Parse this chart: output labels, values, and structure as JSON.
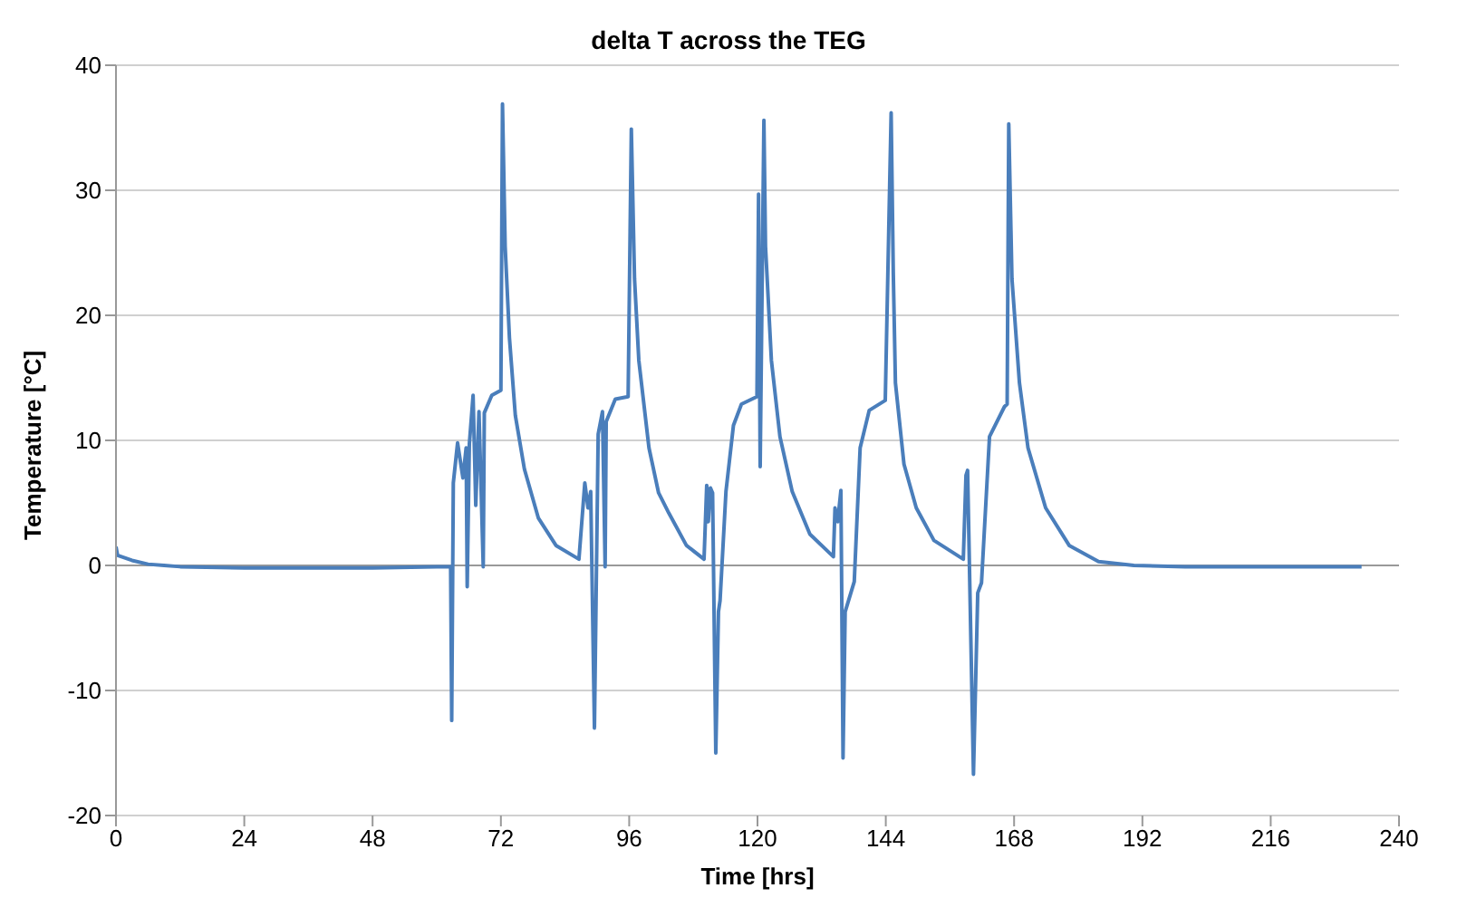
{
  "chart_data": {
    "type": "line",
    "title": "delta T across the TEG",
    "xlabel": "Time [hrs]",
    "ylabel": "Temperature [°C]",
    "x": [
      0,
      0.3,
      3,
      6,
      9,
      12,
      24,
      36,
      48,
      60,
      62.6,
      62.8,
      63.1,
      63.9,
      64.9,
      65.5,
      65.7,
      66.1,
      66.8,
      67.3,
      67.9,
      68.7,
      68.9,
      70.3,
      72.0,
      72.3,
      72.8,
      73.6,
      74.7,
      76.4,
      79,
      82.3,
      86.6,
      87.7,
      88.3,
      88.8,
      89.5,
      90.2,
      91.0,
      91.5,
      91.7,
      93.4,
      95.8,
      96.4,
      97,
      97.8,
      99.7,
      101.5,
      103.4,
      106.7,
      110,
      110.5,
      110.8,
      111.2,
      111.6,
      112.2,
      112.7,
      113,
      114.1,
      115.5,
      117,
      119.9,
      120.2,
      120.5,
      121.2,
      121.5,
      122.6,
      124.2,
      126.5,
      129.8,
      134.2,
      134.5,
      135,
      135.6,
      136.0,
      136.4,
      138.1,
      139.2,
      140.9,
      143.9,
      145.0,
      145.4,
      145.8,
      147.4,
      149.7,
      153,
      158.5,
      159,
      159.3,
      160.4,
      161.2,
      161.9,
      163.4,
      166.2,
      166.7,
      167,
      167.6,
      169,
      170.6,
      173.9,
      178.3,
      183.8,
      190.4,
      200,
      216,
      233
    ],
    "values": [
      1.5,
      0.8,
      0.4,
      0.1,
      0,
      -0.1,
      -0.2,
      -0.2,
      -0.2,
      -0.1,
      -0.1,
      -12.4,
      6.6,
      9.8,
      7.0,
      9.4,
      -1.7,
      9.7,
      13.6,
      4.8,
      12.3,
      -0.1,
      12.2,
      13.6,
      14.0,
      36.9,
      25.5,
      18.2,
      12.0,
      7.7,
      3.8,
      1.6,
      0.5,
      6.6,
      4.6,
      5.9,
      -13.0,
      10.5,
      12.3,
      -0.1,
      11.5,
      13.3,
      13.5,
      34.9,
      22.9,
      16.4,
      9.4,
      5.8,
      4.2,
      1.6,
      0.5,
      6.4,
      3.5,
      6.2,
      5.8,
      -15.0,
      -3.7,
      -2.8,
      5.9,
      11.2,
      12.9,
      13.5,
      29.7,
      7.9,
      35.6,
      25.5,
      16.4,
      10.3,
      5.9,
      2.5,
      0.7,
      4.6,
      3.5,
      6.0,
      -15.4,
      -3.7,
      -1.3,
      9.4,
      12.4,
      13.2,
      36.2,
      23.4,
      14.6,
      8.1,
      4.6,
      2.0,
      0.5,
      7.2,
      7.6,
      -16.7,
      -2.2,
      -1.4,
      10.3,
      12.7,
      12.9,
      35.3,
      22.9,
      14.6,
      9.4,
      4.6,
      1.6,
      0.3,
      0,
      -0.1,
      -0.1,
      -0.1
    ],
    "color": "#4a7ebb",
    "marker": "none",
    "line_style": "solid",
    "xlim": [
      0,
      240
    ],
    "xticks": [
      0,
      24,
      48,
      72,
      96,
      120,
      144,
      168,
      192,
      216,
      240
    ],
    "ylim": [
      -20,
      40
    ],
    "yticks": [
      -20,
      -10,
      0,
      10,
      20,
      30,
      40
    ],
    "grid": "y"
  }
}
